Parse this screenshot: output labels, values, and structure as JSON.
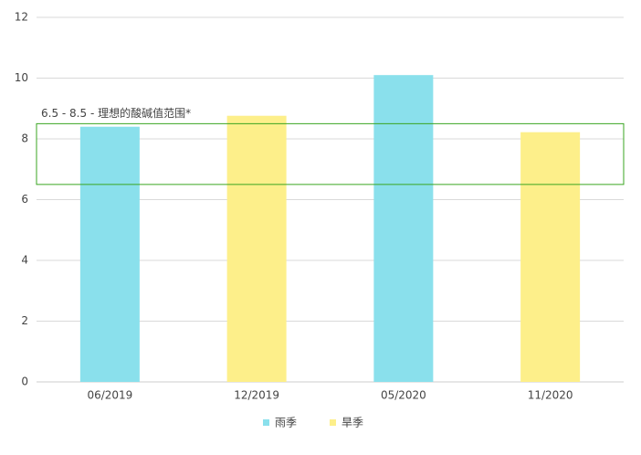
{
  "chart_data": {
    "type": "bar",
    "categories": [
      "06/2019",
      "12/2019",
      "05/2020",
      "11/2020"
    ],
    "series": [
      {
        "name": "雨季",
        "color": "#8ae0ec",
        "values": [
          8.4,
          null,
          10.1,
          null
        ]
      },
      {
        "name": "旱季",
        "color": "#fdef8a",
        "values": [
          null,
          8.76,
          null,
          8.22
        ]
      }
    ],
    "ylim": [
      0,
      12
    ],
    "yticks": [
      0,
      2,
      4,
      6,
      8,
      10,
      12
    ],
    "grid": true,
    "annotation": {
      "text": "6.5 - 8.5 - 理想的酸碱值范围*",
      "range": [
        6.5,
        8.5
      ],
      "color": "#3aa520"
    },
    "legend": "bottom"
  }
}
